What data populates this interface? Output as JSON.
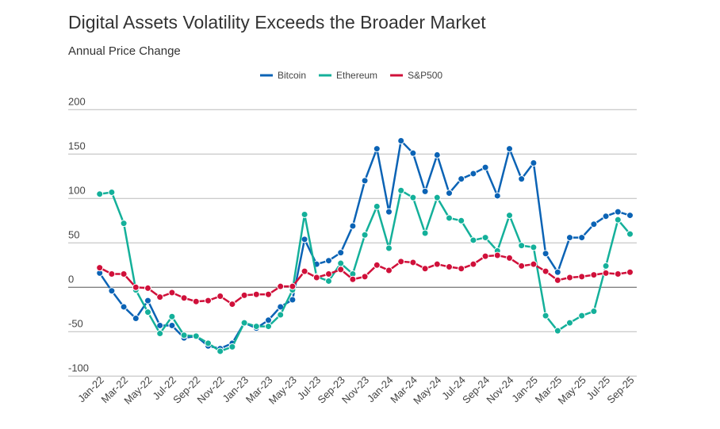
{
  "chart_data": {
    "type": "line",
    "title": "Digital Assets Volatility Exceeds the Broader Market",
    "subtitle": "Annual Price Change",
    "xlabel": "",
    "ylabel": "",
    "ylim": [
      -100,
      200
    ],
    "yticks": [
      200,
      150,
      100,
      50,
      0,
      -50,
      -100
    ],
    "grid": true,
    "legend_position": "top-center",
    "x": [
      "Jan-22",
      "Feb-22",
      "Mar-22",
      "Apr-22",
      "May-22",
      "Jun-22",
      "Jul-22",
      "Aug-22",
      "Sep-22",
      "Oct-22",
      "Nov-22",
      "Dec-22",
      "Jan-23",
      "Feb-23",
      "Mar-23",
      "Apr-23",
      "May-23",
      "Jun-23",
      "Jul-23",
      "Aug-23",
      "Sep-23",
      "Oct-23",
      "Nov-23",
      "Dec-23",
      "Jan-24",
      "Feb-24",
      "Mar-24",
      "Apr-24",
      "May-24",
      "Jun-24",
      "Jul-24",
      "Aug-24",
      "Sep-24",
      "Oct-24",
      "Nov-24",
      "Dec-24",
      "Jan-25",
      "Feb-25",
      "Mar-25",
      "Apr-25",
      "May-25",
      "Jun-25",
      "Jul-25",
      "Aug-25",
      "Sep-25"
    ],
    "xtick_labels": [
      "Jan-22",
      "Mar-22",
      "May-22",
      "Jul-22",
      "Sep-22",
      "Nov-22",
      "Jan-23",
      "Mar-23",
      "May-23",
      "Jul-23",
      "Sep-23",
      "Nov-23",
      "Jan-24",
      "Mar-24",
      "May-24",
      "Jul-24",
      "Sep-24",
      "Nov-24",
      "Jan-25",
      "Mar-25",
      "May-25",
      "Jul-25",
      "Sep-25"
    ],
    "series": [
      {
        "name": "Bitcoin",
        "color": "#0b63b5",
        "values": [
          16,
          -4,
          -22,
          -35,
          -15,
          -43,
          -43,
          -57,
          -55,
          -66,
          -69,
          -63,
          -40,
          -46,
          -37,
          -22,
          -14,
          54,
          26,
          30,
          39,
          69,
          120,
          156,
          85,
          165,
          151,
          108,
          149,
          106,
          122,
          128,
          135,
          103,
          156,
          122,
          140,
          38,
          17,
          56,
          56,
          71,
          80,
          85,
          81
        ]
      },
      {
        "name": "Ethereum",
        "color": "#14b09a",
        "values": [
          105,
          107,
          72,
          -3,
          -28,
          -52,
          -33,
          -54,
          -55,
          -63,
          -72,
          -67,
          -40,
          -44,
          -44,
          -31,
          -3,
          82,
          12,
          7,
          27,
          15,
          59,
          91,
          44,
          109,
          101,
          61,
          101,
          78,
          75,
          53,
          56,
          41,
          81,
          47,
          45,
          -32,
          -49,
          -40,
          -32,
          -27,
          24,
          76,
          60
        ]
      },
      {
        "name": "S&P500",
        "color": "#d0103a",
        "values": [
          22,
          15,
          15,
          0,
          -1,
          -11,
          -6,
          -12,
          -16,
          -15,
          -10,
          -19,
          -9,
          -8,
          -8,
          1,
          1,
          18,
          11,
          15,
          20,
          9,
          12,
          25,
          19,
          29,
          28,
          21,
          26,
          23,
          21,
          26,
          35,
          36,
          33,
          24,
          26,
          18,
          8,
          11,
          12,
          14,
          16,
          15,
          17
        ]
      }
    ]
  }
}
